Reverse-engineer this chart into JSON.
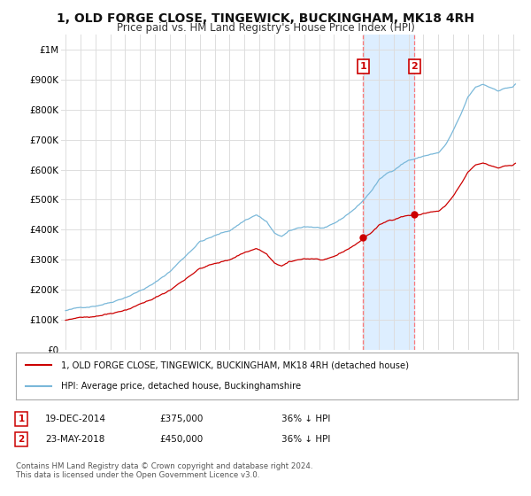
{
  "title": "1, OLD FORGE CLOSE, TINGEWICK, BUCKINGHAM, MK18 4RH",
  "subtitle": "Price paid vs. HM Land Registry's House Price Index (HPI)",
  "title_fontsize": 10,
  "subtitle_fontsize": 8.5,
  "background_color": "#ffffff",
  "plot_bg_color": "#ffffff",
  "grid_color": "#dddddd",
  "hpi_color": "#7ab8d9",
  "price_color": "#cc0000",
  "sale_marker_color": "#cc0000",
  "highlight_bg": "#ddeeff",
  "ylim": [
    0,
    1050000
  ],
  "yticks": [
    0,
    100000,
    200000,
    300000,
    400000,
    500000,
    600000,
    700000,
    800000,
    900000,
    1000000
  ],
  "ytick_labels": [
    "£0",
    "£100K",
    "£200K",
    "£300K",
    "£400K",
    "£500K",
    "£600K",
    "£700K",
    "£800K",
    "£900K",
    "£1M"
  ],
  "sale1_date": 2014.96,
  "sale1_price": 375000,
  "sale1_label": "1",
  "sale2_date": 2018.39,
  "sale2_price": 450000,
  "sale2_label": "2",
  "legend_line1": "1, OLD FORGE CLOSE, TINGEWICK, BUCKINGHAM, MK18 4RH (detached house)",
  "legend_line2": "HPI: Average price, detached house, Buckinghamshire",
  "footer": "Contains HM Land Registry data © Crown copyright and database right 2024.\nThis data is licensed under the Open Government Licence v3.0.",
  "xmin": 1995,
  "xmax": 2025.5,
  "note1_num": "1",
  "note1_date": "19-DEC-2014",
  "note1_price": "£375,000",
  "note1_hpi": "36% ↓ HPI",
  "note2_num": "2",
  "note2_date": "23-MAY-2018",
  "note2_price": "£450,000",
  "note2_hpi": "36% ↓ HPI"
}
